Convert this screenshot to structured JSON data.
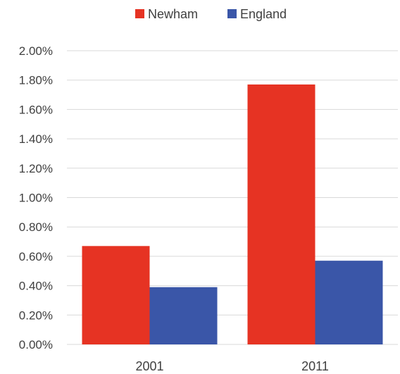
{
  "chart_data": {
    "type": "bar",
    "categories": [
      "2001",
      "2011"
    ],
    "series": [
      {
        "name": "Newham",
        "color": "#e63323",
        "values": [
          0.67,
          1.77
        ]
      },
      {
        "name": "England",
        "color": "#3a56a8",
        "values": [
          0.39,
          0.57
        ]
      }
    ],
    "ylim": [
      0,
      2.0
    ],
    "yticks": [
      "0.00%",
      "0.20%",
      "0.40%",
      "0.60%",
      "0.80%",
      "1.00%",
      "1.20%",
      "1.40%",
      "1.60%",
      "1.80%",
      "2.00%"
    ],
    "y_tick_values": [
      0,
      0.2,
      0.4,
      0.6,
      0.8,
      1.0,
      1.2,
      1.4,
      1.6,
      1.8,
      2.0
    ],
    "grid": true,
    "legend_position": "top-center"
  }
}
